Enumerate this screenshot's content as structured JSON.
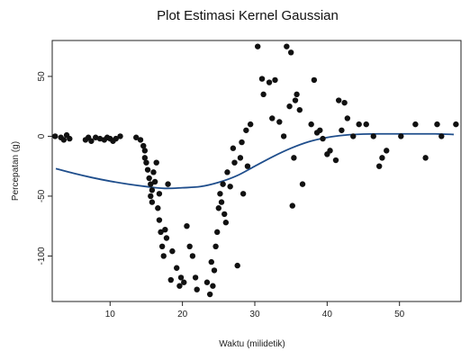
{
  "chart_data": {
    "type": "scatter",
    "title": "Plot Estimasi Kernel Gaussian",
    "xlabel": "Waktu (milidetik)",
    "ylabel": "Percepatan (g)",
    "xlim": [
      2,
      58.5
    ],
    "ylim": [
      -138,
      80
    ],
    "xticks": [
      10,
      20,
      30,
      40,
      50
    ],
    "yticks": [
      -100,
      -50,
      0,
      50
    ],
    "grid": false,
    "legend": "none",
    "colors": {
      "points": "#111111",
      "curve": "#1f4e8c",
      "axes": "#222222"
    },
    "series": [
      {
        "type": "scatter",
        "x": [
          2.4,
          3.2,
          3.6,
          4.0,
          4.4,
          6.6,
          7.0,
          7.4,
          8.0,
          8.6,
          9.2,
          9.6,
          10.0,
          10.4,
          10.8,
          11.4,
          13.6,
          14.2,
          14.6,
          14.8,
          14.8,
          15.0,
          15.2,
          15.4,
          15.6,
          15.6,
          15.8,
          15.8,
          16.0,
          16.2,
          16.4,
          16.6,
          16.8,
          16.8,
          17.0,
          17.2,
          17.4,
          17.6,
          17.8,
          18.0,
          18.4,
          18.6,
          19.2,
          19.6,
          19.8,
          20.2,
          20.6,
          21.0,
          21.4,
          21.8,
          22.0,
          23.4,
          23.8,
          24.0,
          24.2,
          24.4,
          24.6,
          24.8,
          25.0,
          25.2,
          25.4,
          25.6,
          25.8,
          26.0,
          26.2,
          26.6,
          27.0,
          27.2,
          27.6,
          28.0,
          28.2,
          28.4,
          28.8,
          29.0,
          29.4,
          30.4,
          31.0,
          31.2,
          32.0,
          32.4,
          32.8,
          33.4,
          34.0,
          34.4,
          34.8,
          35.0,
          35.2,
          35.4,
          35.6,
          35.8,
          36.2,
          36.6,
          37.8,
          38.2,
          38.6,
          39.0,
          39.4,
          40.0,
          40.4,
          41.2,
          41.6,
          42.0,
          42.4,
          42.8,
          43.6,
          44.4,
          45.4,
          46.4,
          47.2,
          47.6,
          48.2,
          50.2,
          52.2,
          53.6,
          55.2,
          55.8,
          57.8
        ],
        "y": [
          0,
          -1,
          -3,
          1,
          -2,
          -3,
          -1,
          -4,
          -1,
          -2,
          -3,
          -1,
          -2,
          -4,
          -2,
          0,
          -1,
          -3,
          -8,
          -12,
          -18,
          -22,
          -28,
          -35,
          -40,
          -50,
          -45,
          -55,
          -30,
          -38,
          -22,
          -60,
          -48,
          -70,
          -80,
          -92,
          -100,
          -78,
          -85,
          -40,
          -120,
          -96,
          -110,
          -125,
          -118,
          -122,
          -75,
          -92,
          -100,
          -118,
          -128,
          -122,
          -132,
          -105,
          -125,
          -112,
          -92,
          -80,
          -60,
          -48,
          -55,
          -40,
          -65,
          -72,
          -30,
          -42,
          -10,
          -22,
          -108,
          -18,
          -5,
          -48,
          5,
          -25,
          10,
          75,
          48,
          35,
          45,
          15,
          47,
          12,
          0,
          75,
          25,
          70,
          -58,
          -18,
          30,
          35,
          22,
          -40,
          10,
          47,
          3,
          5,
          -2,
          -15,
          -12,
          -20,
          30,
          5,
          28,
          15,
          0,
          10,
          10,
          0,
          -25,
          -18,
          -12,
          0,
          10,
          -18,
          10,
          0,
          10
        ]
      },
      {
        "type": "line",
        "x": [
          2.5,
          5,
          7.5,
          10,
          12.5,
          15,
          17.5,
          20,
          22.5,
          25,
          27.5,
          30,
          32.5,
          35,
          37.5,
          40,
          42.5,
          45,
          47.5,
          50,
          52.5,
          55,
          57.5
        ],
        "y": [
          -27,
          -31,
          -34.5,
          -37.5,
          -40,
          -42,
          -43.5,
          -43,
          -42,
          -38.5,
          -33,
          -25,
          -17,
          -10,
          -4.5,
          -1,
          1,
          1.8,
          2,
          2,
          2,
          2,
          1.5
        ]
      }
    ]
  }
}
